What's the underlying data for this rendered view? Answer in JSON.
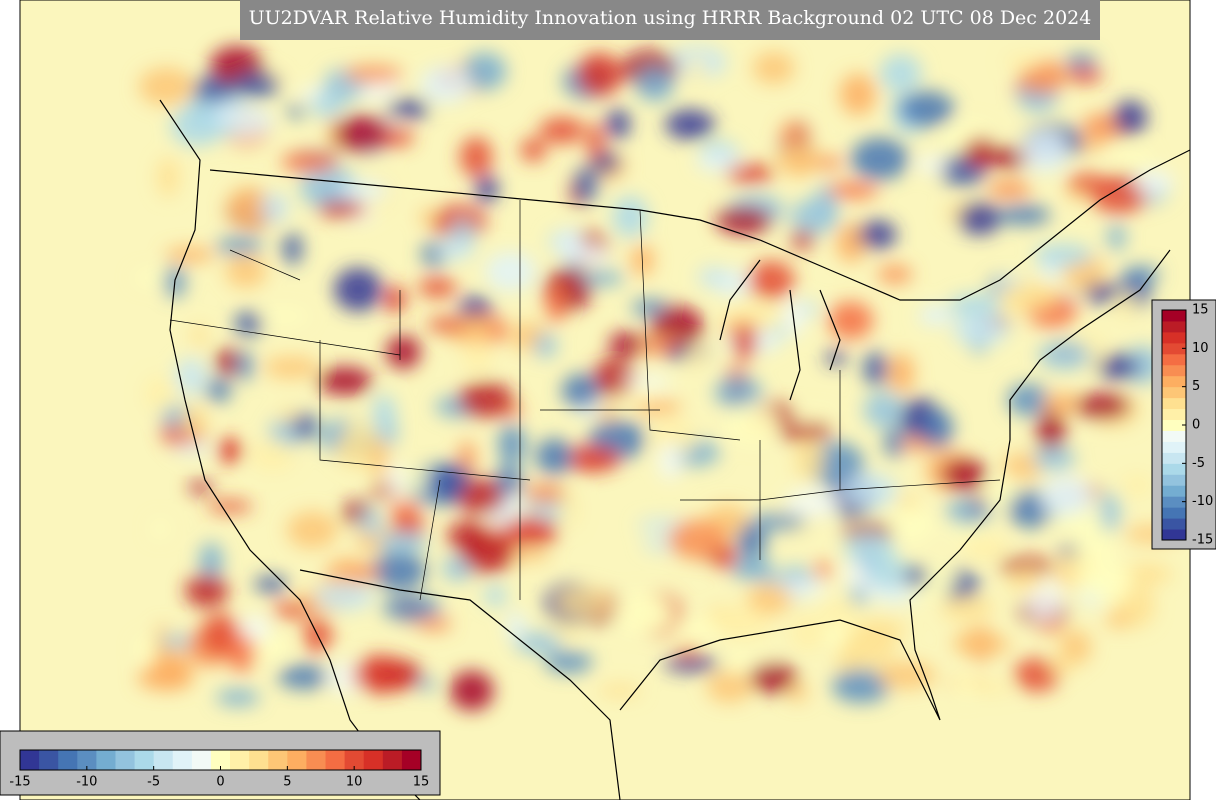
{
  "title": "UU2DVAR Relative Humidity Innovation using HRRR Background 02 UTC 08 Dec 2024",
  "colorbars": [
    {
      "orientation": "horizontal",
      "range": [
        -15,
        15
      ],
      "ticks": [
        -15,
        -10,
        -5,
        0,
        5,
        10,
        15
      ]
    },
    {
      "orientation": "vertical",
      "range": [
        -15,
        15
      ],
      "ticks": [
        15,
        10,
        5,
        0,
        -5,
        -10,
        -15
      ]
    }
  ],
  "colors": [
    "#313695",
    "#3a55a3",
    "#4575b4",
    "#5b8ec1",
    "#74add1",
    "#93c3de",
    "#abd9e9",
    "#c8e6f1",
    "#e0f3f8",
    "#f2faf6",
    "#ffffbf",
    "#fff0a8",
    "#fee090",
    "#fdc676",
    "#fdae61",
    "#f88d52",
    "#f46d43",
    "#e34a33",
    "#d73027",
    "#bb1c26",
    "#a50026"
  ]
}
